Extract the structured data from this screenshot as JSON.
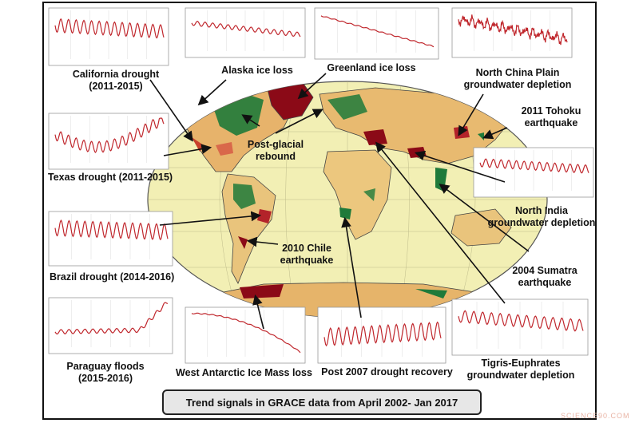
{
  "caption": "Trend signals in GRACE data from April 2002- Jan 2017",
  "watermark": "SCIENCE90.COM",
  "colors": {
    "trend_line": "#c0272d",
    "ocean": "#f2efb4",
    "wet": "#1f7a3a",
    "dry": "#8b0a17"
  },
  "labels": {
    "california": [
      "California drought",
      "(2011-2015)"
    ],
    "alaska": [
      "Alaska ice loss"
    ],
    "greenland": [
      "Greenland ice loss"
    ],
    "north_china": [
      "North China Plain",
      "groundwater depletion"
    ],
    "tohoku": [
      "2011 Tohoku",
      "earthquake"
    ],
    "post_glacial": [
      "Post-glacial",
      "rebound"
    ],
    "texas": [
      "Texas drought (2011-2015)"
    ],
    "north_india": [
      "North India",
      "groundwater depletion"
    ],
    "chile": [
      "2010 Chile",
      "earthquake"
    ],
    "brazil": [
      "Brazil drought (2014-2016)"
    ],
    "sumatra": [
      "2004 Sumatra",
      "earthquake"
    ],
    "paraguay": [
      "Paraguay floods",
      "(2015-2016)"
    ],
    "west_antarctic": [
      "West Antarctic Ice Mass loss"
    ],
    "post2007": [
      "Post 2007 drought recovery"
    ],
    "tigris": [
      "Tigris-Euphrates",
      "groundwater depletion"
    ]
  },
  "chart_data": [
    {
      "type": "line",
      "name": "California drought (2011-2015)",
      "pattern": "seasonal-decline",
      "amplitude": 0.6,
      "trend": -0.35
    },
    {
      "type": "line",
      "name": "Alaska ice loss",
      "pattern": "seasonal-decline",
      "amplitude": 0.25,
      "trend": -0.8
    },
    {
      "type": "line",
      "name": "Greenland ice loss",
      "pattern": "steady-decline",
      "amplitude": 0.05,
      "trend": -1.0
    },
    {
      "type": "line",
      "name": "North China Plain groundwater depletion",
      "pattern": "noisy-decline",
      "amplitude": 0.35,
      "trend": -0.75
    },
    {
      "type": "line",
      "name": "Texas drought (2011-2015)",
      "pattern": "dip-recovery",
      "amplitude": 0.5,
      "trend": -0.2
    },
    {
      "type": "line",
      "name": "North India groundwater depletion",
      "pattern": "seasonal-decline",
      "amplitude": 0.45,
      "trend": -0.45
    },
    {
      "type": "line",
      "name": "Brazil drought (2014-2016)",
      "pattern": "seasonal-decline",
      "amplitude": 0.75,
      "trend": -0.25
    },
    {
      "type": "line",
      "name": "Paraguay floods (2015-2016)",
      "pattern": "late-rise",
      "amplitude": 0.2,
      "trend": 0.9
    },
    {
      "type": "line",
      "name": "West Antarctic Ice Mass loss",
      "pattern": "accelerating-decline",
      "amplitude": 0.04,
      "trend": -1.0
    },
    {
      "type": "line",
      "name": "Post 2007 drought recovery",
      "pattern": "seasonal-rise",
      "amplitude": 0.8,
      "trend": 0.2
    },
    {
      "type": "line",
      "name": "Tigris-Euphrates groundwater depletion",
      "pattern": "seasonal-decline",
      "amplitude": 0.55,
      "trend": -0.55
    }
  ]
}
